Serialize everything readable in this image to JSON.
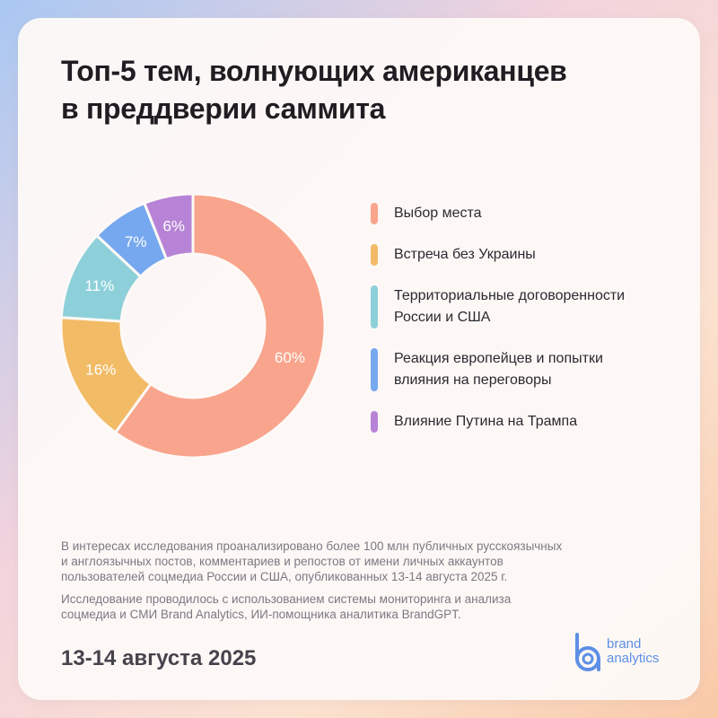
{
  "title_line1": "Топ-5 тем, волнующих американцев",
  "title_line2": "в преддверии саммита",
  "chart_data": {
    "type": "pie",
    "donut": true,
    "categories": [
      "Выбор места",
      "Встреча без Украины",
      "Территориальные договоренности России и США",
      "Реакция европейцев и попытки влияния на переговоры",
      "Влияние Путина на Трампа"
    ],
    "values": [
      60,
      16,
      11,
      7,
      6
    ],
    "value_labels": [
      "60%",
      "16%",
      "11%",
      "7%",
      "6%"
    ],
    "colors": [
      "#f9a48c",
      "#f2bb66",
      "#8dd0da",
      "#76a8ef",
      "#b783d6"
    ],
    "legend_position": "right"
  },
  "legend": {
    "items": [
      {
        "line1": "Выбор места",
        "line2": "",
        "color": "#f9a48c"
      },
      {
        "line1": "Встреча без Украины",
        "line2": "",
        "color": "#f2bb66"
      },
      {
        "line1": "Территориальные договоренности",
        "line2": "России и США",
        "color": "#8dd0da"
      },
      {
        "line1": "Реакция европейцев и попытки",
        "line2": "влияния на переговоры",
        "color": "#76a8ef"
      },
      {
        "line1": "Влияние Путина на Трампа",
        "line2": "",
        "color": "#b783d6"
      }
    ]
  },
  "note": {
    "p1_line1": "В интересах исследования проанализировано более 100 млн публичных русскоязычных",
    "p1_line2": "и англоязычных постов, комментариев и репостов от имени личных аккаунтов",
    "p1_line3": "пользователей соцмедиа России и США, опубликованных 13-14 августа 2025 г.",
    "p2_line1": "Исследование проводилось с использованием системы мониторинга и анализа",
    "p2_line2": "соцмедиа и СМИ Brand Analytics, ИИ-помощника аналитика BrandGPT."
  },
  "date": "13-14 августа 2025",
  "brand": {
    "line1": "brand",
    "line2": "analytics",
    "icon": "brand-analytics-logo-icon",
    "color": "#5d8fe6"
  }
}
